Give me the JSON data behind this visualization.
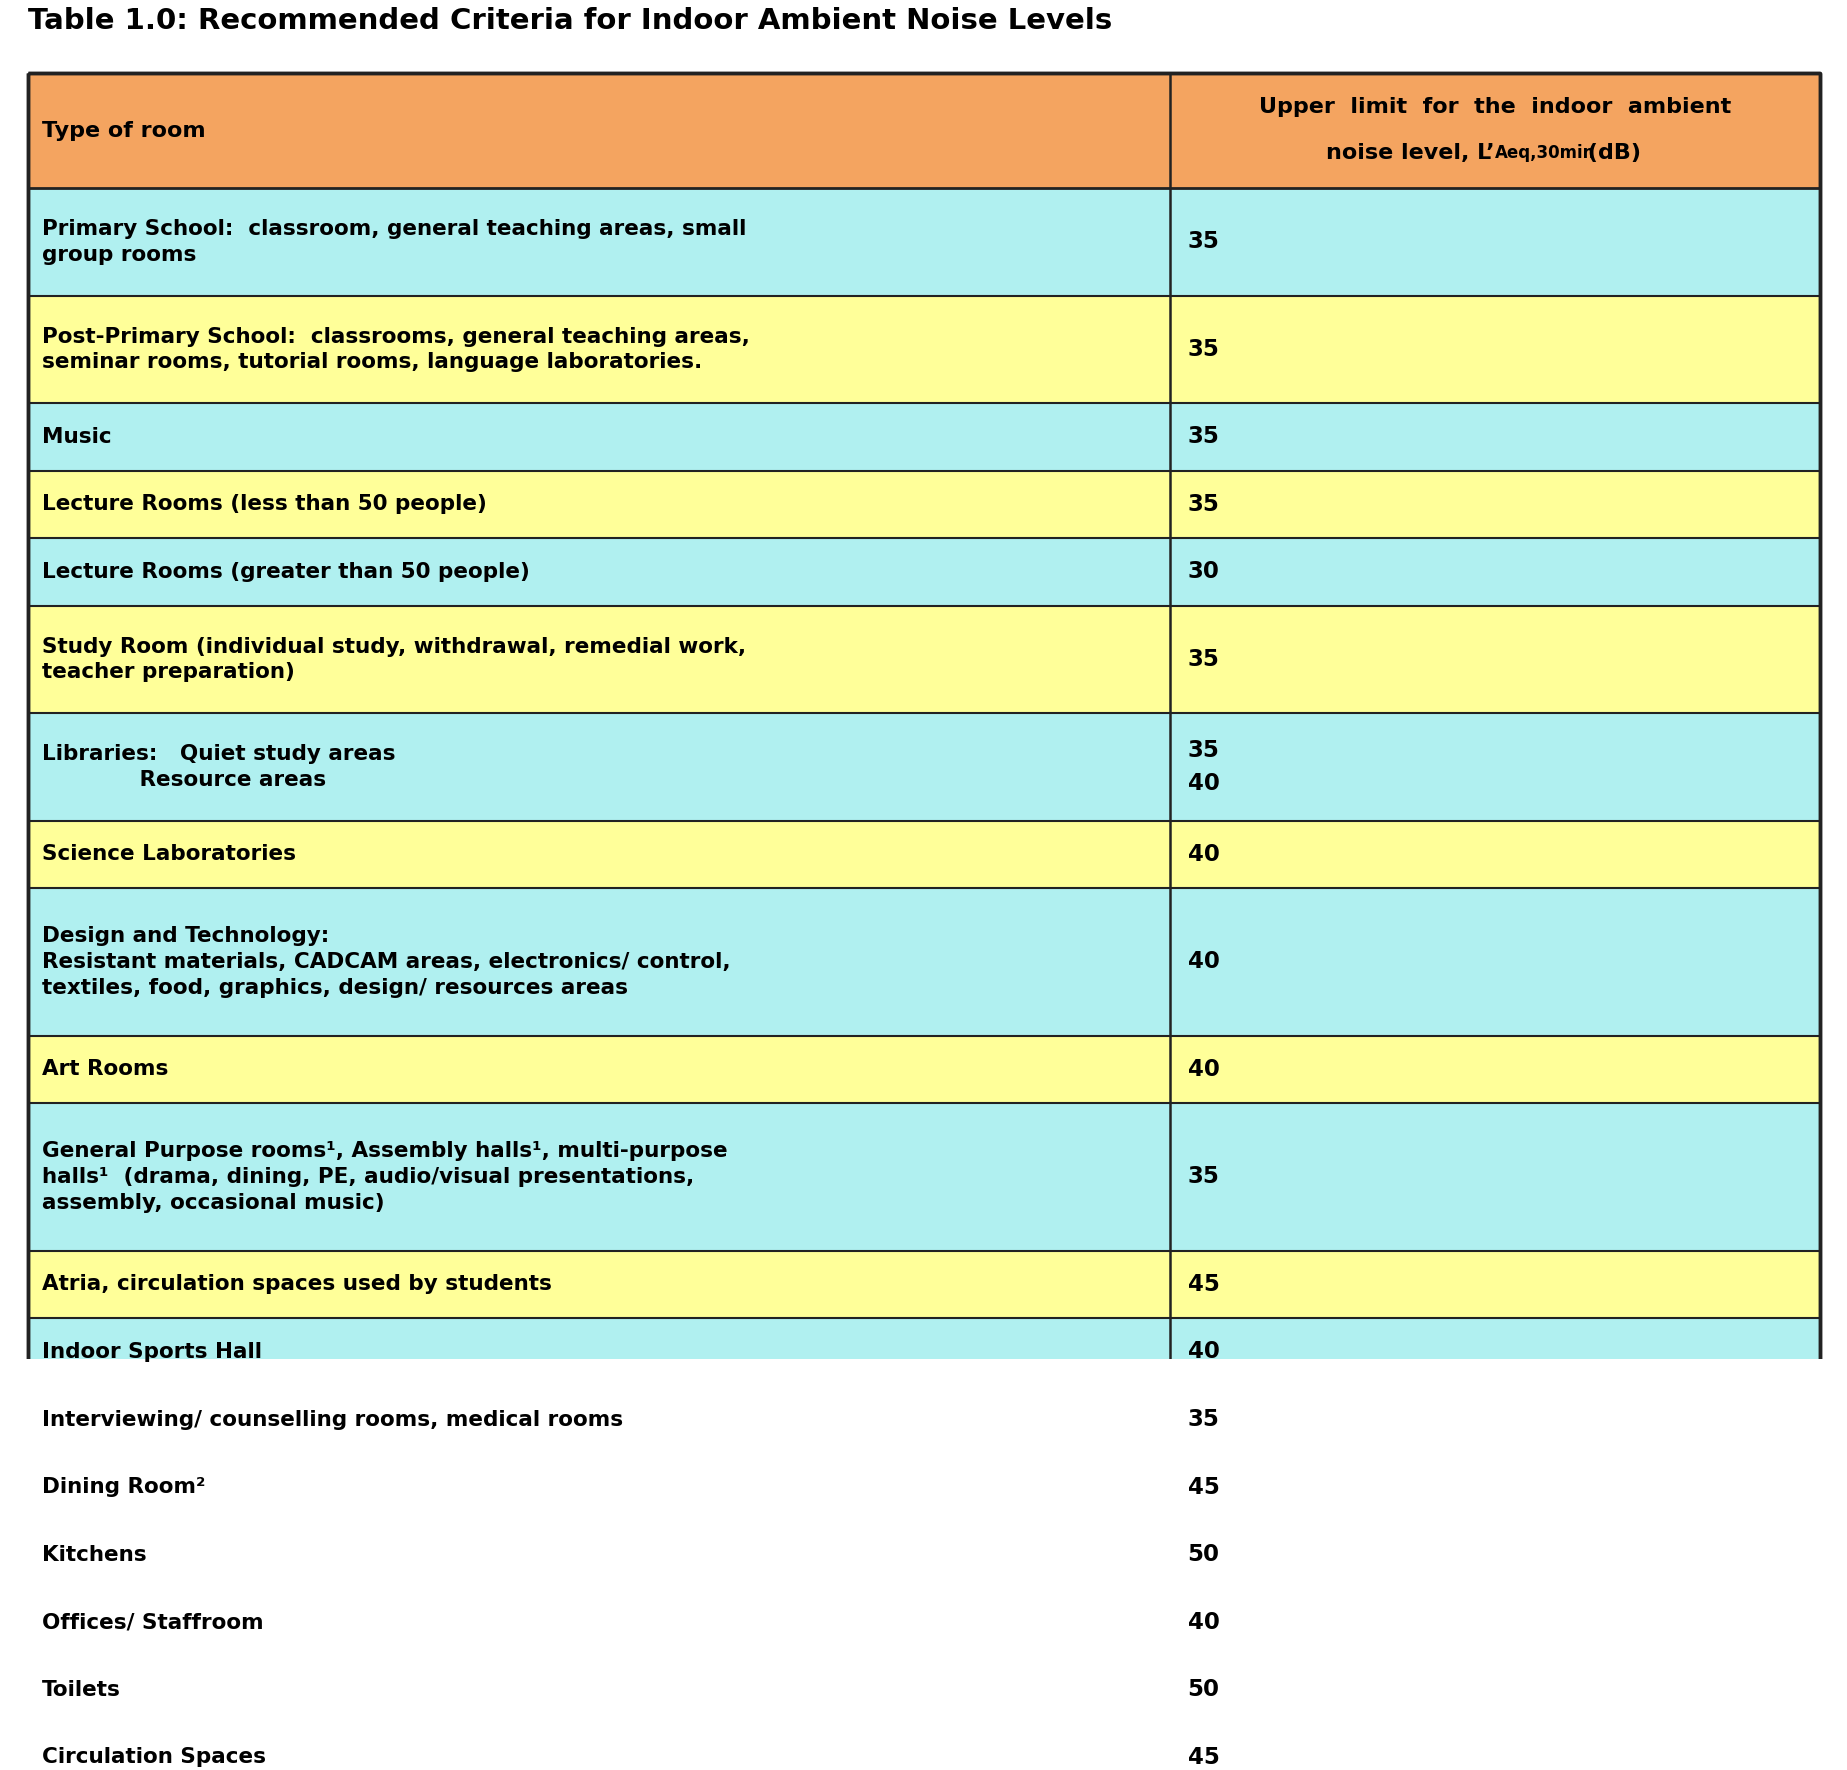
{
  "title": "Table 1.0: Recommended Criteria for Indoor Ambient Noise Levels",
  "header_bg": "#F4A460",
  "cyan_bg": "#B0F0F0",
  "yellow_bg": "#FFFF99",
  "rows": [
    {
      "room": "Primary School:  classroom, general teaching areas, small\ngroup rooms",
      "value": "35",
      "bg": "#B0F0F0",
      "nlines": 2
    },
    {
      "room": "Post-Primary School:  classrooms, general teaching areas,\nseminar rooms, tutorial rooms, language laboratories.",
      "value": "35",
      "bg": "#FFFF99",
      "nlines": 2
    },
    {
      "room": "Music",
      "value": "35",
      "bg": "#B0F0F0",
      "nlines": 1
    },
    {
      "room": "Lecture Rooms (less than 50 people)",
      "value": "35",
      "bg": "#FFFF99",
      "nlines": 1
    },
    {
      "room": "Lecture Rooms (greater than 50 people)",
      "value": "30",
      "bg": "#B0F0F0",
      "nlines": 1
    },
    {
      "room": "Study Room (individual study, withdrawal, remedial work,\nteacher preparation)",
      "value": "35",
      "bg": "#FFFF99",
      "nlines": 2
    },
    {
      "room": "Libraries:   Quiet study areas\n             Resource areas",
      "value": "35\n40",
      "bg": "#B0F0F0",
      "nlines": 2
    },
    {
      "room": "Science Laboratories",
      "value": "40",
      "bg": "#FFFF99",
      "nlines": 1
    },
    {
      "room": "Design and Technology:\nResistant materials, CADCAM areas, electronics/ control,\ntextiles, food, graphics, design/ resources areas",
      "value": "40",
      "bg": "#B0F0F0",
      "nlines": 3
    },
    {
      "room": "Art Rooms",
      "value": "40",
      "bg": "#FFFF99",
      "nlines": 1
    },
    {
      "room": "General Purpose rooms¹, Assembly halls¹, multi-purpose\nhalls¹  (drama, dining, PE, audio/visual presentations,\nassembly, occasional music)",
      "value": "35",
      "bg": "#B0F0F0",
      "nlines": 3
    },
    {
      "room": "Atria, circulation spaces used by students",
      "value": "45",
      "bg": "#FFFF99",
      "nlines": 1
    },
    {
      "room": "Indoor Sports Hall",
      "value": "40",
      "bg": "#B0F0F0",
      "nlines": 1
    },
    {
      "room": "Interviewing/ counselling rooms, medical rooms",
      "value": "35",
      "bg": "#FFFF99",
      "nlines": 1
    },
    {
      "room": "Dining Room²",
      "value": "45",
      "bg": "#B0F0F0",
      "nlines": 1
    },
    {
      "room": "Kitchens",
      "value": "50",
      "bg": "#FFFF99",
      "nlines": 1
    },
    {
      "room": "Offices/ Staffroom",
      "value": "40",
      "bg": "#B0F0F0",
      "nlines": 1
    },
    {
      "room": "Toilets",
      "value": "50",
      "bg": "#FFFF99",
      "nlines": 1
    },
    {
      "room": "Circulation Spaces",
      "value": "45",
      "bg": "#B0F0F0",
      "nlines": 1
    }
  ],
  "col_split": 0.637,
  "border_color": "#222222",
  "title_fontsize": 21,
  "header_fontsize": 16,
  "body_fontsize": 15.5
}
